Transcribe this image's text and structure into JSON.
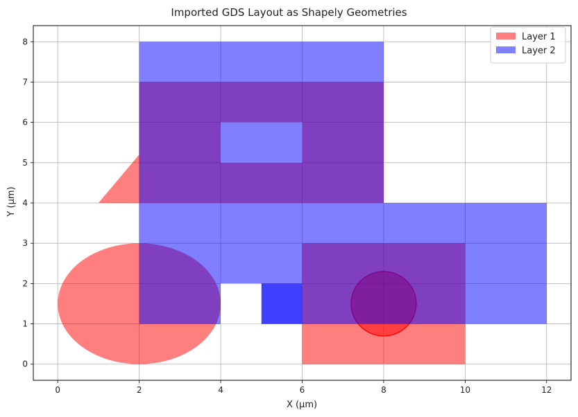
{
  "chart_data": {
    "type": "area",
    "title": "Imported GDS Layout as Shapely Geometries",
    "xlabel": "X (µm)",
    "ylabel": "Y (µm)",
    "xlim": [
      -0.6,
      12.6
    ],
    "ylim": [
      -0.4,
      8.4
    ],
    "xticks": [
      0,
      2,
      4,
      6,
      8,
      10,
      12
    ],
    "yticks": [
      0,
      1,
      2,
      3,
      4,
      5,
      6,
      7,
      8
    ],
    "grid": true,
    "legend_position": "top-right",
    "series": [
      {
        "name": "Layer 1",
        "color": "#ff0000",
        "alpha": 0.5,
        "shapes": [
          {
            "kind": "rect",
            "x": [
              2,
              6
            ],
            "y": [
              4,
              7
            ]
          },
          {
            "kind": "polygon",
            "points": [
              [
                1,
                4
              ],
              [
                2,
                4
              ],
              [
                2,
                5.2
              ]
            ]
          },
          {
            "kind": "rect",
            "x": [
              6,
              8
            ],
            "y": [
              4,
              7
            ]
          },
          {
            "kind": "ellipse",
            "cx": 2,
            "cy": 1.5,
            "rx": 2,
            "ry": 1.5
          },
          {
            "kind": "rect",
            "x": [
              6,
              10
            ],
            "y": [
              0,
              3
            ]
          },
          {
            "kind": "circle",
            "cx": 8,
            "cy": 1.5,
            "r": 0.8,
            "outline": true
          }
        ]
      },
      {
        "name": "Layer 2",
        "color": "#0000ff",
        "alpha": 0.5,
        "shapes": [
          {
            "kind": "rect",
            "x": [
              2,
              8
            ],
            "y": [
              4,
              8
            ]
          },
          {
            "kind": "rect",
            "x": [
              2,
              12
            ],
            "y": [
              1,
              4
            ]
          }
        ]
      }
    ],
    "masks": [
      {
        "kind": "rect",
        "x": [
          4,
          6
        ],
        "y": [
          5,
          6
        ]
      },
      {
        "kind": "rect",
        "x": [
          4,
          5
        ],
        "y": [
          1,
          2
        ]
      },
      {
        "kind": "rect",
        "x": [
          2,
          2
        ],
        "y": [
          0,
          0
        ]
      }
    ]
  }
}
